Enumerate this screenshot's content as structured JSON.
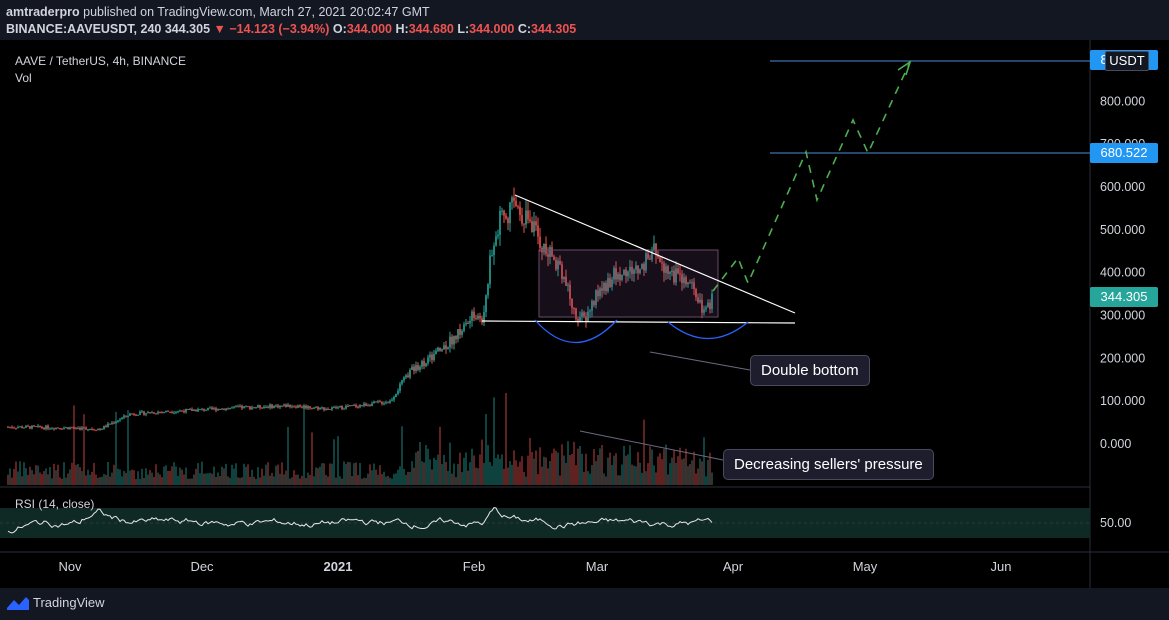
{
  "header": {
    "publisher": "amtraderpro",
    "published_text": "published on TradingView.com, March 27, 2021 20:02:47 GMT",
    "symbol": "BINANCE:AAVEUSDT, 240",
    "last": "344.305",
    "change": "▼ −14.123 (−3.94%)",
    "o_label": "O:",
    "o_val": "344.000",
    "h_label": "H:",
    "h_val": "344.680",
    "l_label": "L:",
    "l_val": "344.000",
    "c_label": "C:",
    "c_val": "344.305"
  },
  "legend": {
    "pair": "AAVE / TetherUS, 4h, BINANCE",
    "vol": "Vol",
    "rsi": "RSI (14, close)"
  },
  "currency": "USDT",
  "price_labels": {
    "current": "344.305",
    "target1": "680.522",
    "target2": "880.000"
  },
  "annotations": {
    "double_bottom": "Double bottom",
    "sellers": "Decreasing sellers' pressure"
  },
  "footer": {
    "brand": "TradingView"
  },
  "colors": {
    "up": "#26a69a",
    "down": "#ef5350",
    "bg": "#000000",
    "rsi_band": "#0f2a24",
    "projection": "#4caf50",
    "accent": "#2962ff"
  },
  "chart_data": {
    "type": "line",
    "title": "AAVE / TetherUS, 4h, BINANCE",
    "x_ticks": [
      "Nov",
      "Dec",
      "2021",
      "Feb",
      "Mar",
      "Apr",
      "May",
      "Jun"
    ],
    "y_ticks": [
      "800.000",
      "700.000",
      "600.000",
      "500.000",
      "400.000",
      "300.000",
      "200.000",
      "100.000",
      "0.000"
    ],
    "ylim": [
      -30,
      900
    ],
    "price_series": {
      "name": "AAVE/USDT",
      "x": [
        "Oct 18",
        "Nov 1",
        "Nov 8",
        "Nov 15",
        "Nov 22",
        "Dec 1",
        "Dec 10",
        "Dec 20",
        "Dec 28",
        "Jan 1",
        "Jan 8",
        "Jan 15",
        "Jan 20",
        "Jan 25",
        "Jan 28",
        "Feb 1",
        "Feb 3",
        "Feb 6",
        "Feb 10",
        "Feb 14",
        "Feb 18",
        "Feb 22",
        "Feb 24",
        "Feb 27",
        "Mar 3",
        "Mar 7",
        "Mar 10",
        "Mar 13",
        "Mar 17",
        "Mar 21",
        "Mar 24",
        "Mar 27"
      ],
      "values": [
        40,
        35,
        70,
        80,
        75,
        85,
        90,
        80,
        85,
        90,
        100,
        170,
        210,
        250,
        300,
        280,
        450,
        520,
        560,
        480,
        430,
        330,
        290,
        310,
        390,
        420,
        450,
        400,
        380,
        355,
        300,
        344
      ]
    },
    "rsi": {
      "name": "RSI (14, close)",
      "level_label": "50.00",
      "band": [
        30,
        70
      ]
    },
    "lines": [
      {
        "name": "descending-resistance",
        "from": [
          "Feb 9",
          585
        ],
        "to": [
          "Apr 14",
          280
        ]
      },
      {
        "name": "support",
        "from": [
          "Feb 1",
          285
        ],
        "to": [
          "Apr 14",
          285
        ]
      }
    ],
    "levels": [
      680.522,
      880
    ],
    "projection": {
      "x": [
        "Mar 27",
        "Apr 3",
        "Apr 6",
        "Apr 17",
        "Apr 21",
        "May 1",
        "May 5",
        "May 12"
      ],
      "values": [
        360,
        450,
        380,
        680,
        560,
        760,
        680,
        880
      ]
    }
  }
}
